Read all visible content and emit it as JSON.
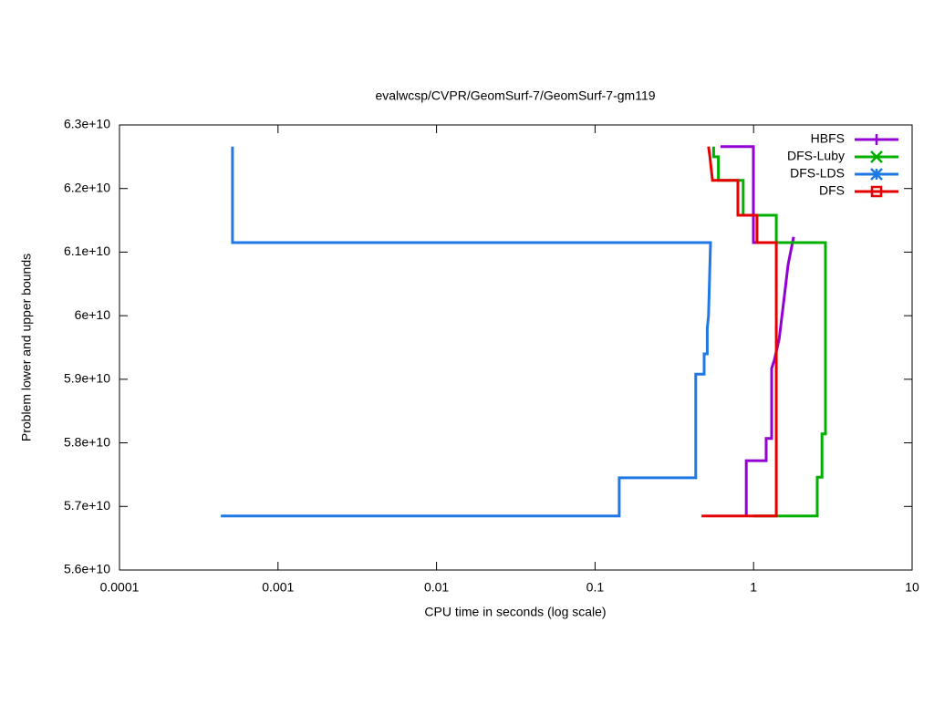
{
  "chart_data": {
    "type": "line",
    "title": "evalwcsp/CVPR/GeomSurf-7/GeomSurf-7-gm119",
    "x_label": "CPU time in seconds (log scale)",
    "y_label": "Problem lower and upper bounds",
    "xscale": "log",
    "xlim": [
      0.0001,
      10
    ],
    "xticks": [
      0.0001,
      0.001,
      0.01,
      0.1,
      1,
      10
    ],
    "ylim": [
      56000000000,
      63000000000
    ],
    "yticks": [
      {
        "value": 56000000000,
        "label": "5.6e+10"
      },
      {
        "value": 57000000000,
        "label": "5.7e+10"
      },
      {
        "value": 58000000000,
        "label": "5.8e+10"
      },
      {
        "value": 59000000000,
        "label": "5.9e+10"
      },
      {
        "value": 60000000000,
        "label": "6e+10"
      },
      {
        "value": 61000000000,
        "label": "6.1e+10"
      },
      {
        "value": 62000000000,
        "label": "6.2e+10"
      },
      {
        "value": 63000000000,
        "label": "6.3e+10"
      }
    ],
    "legend": "top-right",
    "series": [
      {
        "name": "HBFS",
        "color": "#9400d3",
        "marker": "plus",
        "x": [
          0.619,
          0.998,
          0.998,
          1.35,
          null,
          0.9,
          0.9,
          1.2,
          1.2,
          1.3,
          1.3,
          1.35,
          1.45,
          1.55,
          1.65,
          1.79
        ],
        "values": [
          62660000000,
          62660000000,
          61150000000,
          61150000000,
          null,
          56850000000,
          57720000000,
          57720000000,
          58070000000,
          58070000000,
          59170000000,
          59300000000,
          59630000000,
          60230000000,
          60800000000,
          61240000000
        ]
      },
      {
        "name": "DFS-Luby",
        "color": "#00b000",
        "marker": "cross",
        "x": [
          0.56,
          0.56,
          0.6,
          0.6,
          0.86,
          0.86,
          1.39,
          1.39,
          2.84,
          2.84,
          2.7,
          2.7,
          2.52,
          2.52,
          1.0
        ],
        "values": [
          62660000000,
          62500000000,
          62500000000,
          62130000000,
          62130000000,
          61580000000,
          61580000000,
          61150000000,
          61150000000,
          58140000000,
          58140000000,
          57460000000,
          57460000000,
          56850000000,
          56850000000
        ]
      },
      {
        "name": "DFS-LDS",
        "color": "#1e78e6",
        "marker": "star",
        "x": [
          0.000516,
          0.000516,
          0.535,
          0.52,
          0.51,
          0.51,
          0.488,
          0.488,
          0.432,
          0.432,
          0.142,
          0.142,
          0.000436
        ],
        "values": [
          62660000000,
          61150000000,
          61150000000,
          60000000000,
          59800000000,
          59400000000,
          59400000000,
          59080000000,
          59080000000,
          57450000000,
          57450000000,
          56850000000,
          56850000000
        ]
      },
      {
        "name": "DFS",
        "color": "#e60000",
        "marker": "square",
        "x": [
          0.52,
          0.53,
          0.55,
          0.796,
          0.796,
          1.05,
          1.05,
          1.39,
          1.39,
          0.47
        ],
        "values": [
          62660000000,
          62500000000,
          62130000000,
          62130000000,
          61580000000,
          61580000000,
          61150000000,
          61150000000,
          56850000000,
          56850000000
        ]
      }
    ]
  }
}
